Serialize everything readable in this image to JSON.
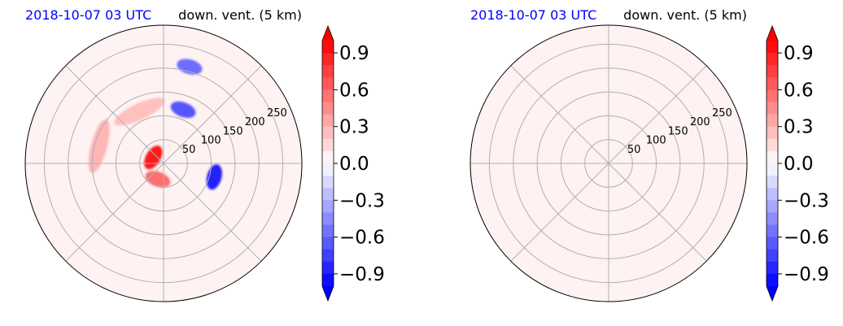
{
  "chart_data": [
    {
      "type": "heatmap",
      "projection": "polar",
      "title_left": "2018-10-07 03 UTC",
      "title_right": "down. vent. (5 km)",
      "title_left_color": "#0000ff",
      "radial_ticks": [
        "50",
        "100",
        "150",
        "200",
        "250"
      ],
      "radial_values": [
        50,
        100,
        150,
        200,
        250
      ],
      "rlim": [
        0,
        290
      ],
      "grid": true,
      "colorbar": {
        "cmap": "bwr",
        "vmin": -1.0,
        "vmax": 1.0,
        "extend": "both",
        "levels": 20,
        "tick_values": [
          0.9,
          0.6,
          0.3,
          0.0,
          -0.3,
          -0.6,
          -0.9
        ],
        "tick_labels": [
          "0.9",
          "0.6",
          "0.3",
          "0.0",
          "−0.3",
          "−0.6",
          "−0.9"
        ]
      },
      "background_value": 0.05,
      "features": [
        {
          "name": "strong positive core",
          "r": 25,
          "theta_deg": 150,
          "value": 0.95
        },
        {
          "name": "positive arc north-west",
          "r": 120,
          "theta_deg": 115,
          "value": 0.3
        },
        {
          "name": "positive arc west",
          "r": 140,
          "theta_deg": 165,
          "value": 0.35
        },
        {
          "name": "positive ring south",
          "r": 35,
          "theta_deg": 250,
          "value": 0.6
        },
        {
          "name": "negative patches north-east",
          "r": 120,
          "theta_deg": 70,
          "value": -0.7
        },
        {
          "name": "negative patch east",
          "r": 110,
          "theta_deg": 345,
          "value": -0.9
        },
        {
          "name": "negative patch north",
          "r": 210,
          "theta_deg": 75,
          "value": -0.6
        }
      ]
    },
    {
      "type": "heatmap",
      "projection": "polar",
      "title_left": "2018-10-07 03 UTC",
      "title_right": "down. vent. (5 km)",
      "title_left_color": "#0000ff",
      "radial_ticks": [
        "50",
        "100",
        "150",
        "200",
        "250"
      ],
      "radial_values": [
        50,
        100,
        150,
        200,
        250
      ],
      "rlim": [
        0,
        290
      ],
      "grid": true,
      "colorbar": {
        "cmap": "bwr",
        "vmin": -1.0,
        "vmax": 1.0,
        "extend": "both",
        "levels": 20,
        "tick_values": [
          0.9,
          0.6,
          0.3,
          0.0,
          -0.3,
          -0.6,
          -0.9
        ],
        "tick_labels": [
          "0.9",
          "0.6",
          "0.3",
          "0.0",
          "−0.3",
          "−0.6",
          "−0.9"
        ]
      },
      "background_value": 0.05,
      "features": []
    }
  ]
}
